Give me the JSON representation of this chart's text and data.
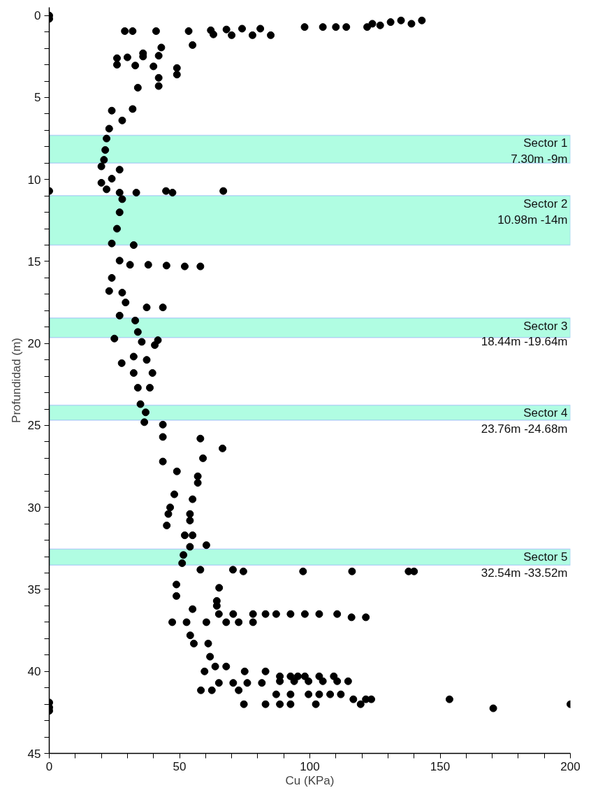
{
  "chart_data": {
    "type": "scatter",
    "xlabel": "Cu (KPa)",
    "ylabel": "Profundidad (m)",
    "marker": "circle",
    "xlim": [
      0,
      200
    ],
    "ylim": [
      45,
      -0.5
    ],
    "xticks": [
      0,
      {
        "value": 10,
        "label": null
      },
      {
        "value": 20,
        "label": null
      },
      {
        "value": 30,
        "label": null
      },
      {
        "value": 40,
        "label": null
      },
      50,
      {
        "value": 60,
        "label": null
      },
      {
        "value": 70,
        "label": null
      },
      {
        "value": 80,
        "label": null
      },
      {
        "value": 90,
        "label": null
      },
      100,
      {
        "value": 110,
        "label": null
      },
      {
        "value": 120,
        "label": null
      },
      {
        "value": 130,
        "label": null
      },
      {
        "value": 140,
        "label": null
      },
      150,
      {
        "value": 160,
        "label": null
      },
      {
        "value": 170,
        "label": null
      },
      {
        "value": 180,
        "label": null
      },
      {
        "value": 190,
        "label": null
      },
      200
    ],
    "yticks": [
      0,
      {
        "value": 1,
        "label": null
      },
      {
        "value": 2,
        "label": null
      },
      {
        "value": 3,
        "label": null
      },
      {
        "value": 4,
        "label": null
      },
      5,
      {
        "value": 6,
        "label": null
      },
      {
        "value": 7,
        "label": null
      },
      {
        "value": 8,
        "label": null
      },
      {
        "value": 9,
        "label": null
      },
      10,
      {
        "value": 11,
        "label": null
      },
      {
        "value": 12,
        "label": null
      },
      {
        "value": 13,
        "label": null
      },
      {
        "value": 14,
        "label": null
      },
      15,
      {
        "value": 16,
        "label": null
      },
      {
        "value": 17,
        "label": null
      },
      {
        "value": 18,
        "label": null
      },
      {
        "value": 19,
        "label": null
      },
      20,
      {
        "value": 21,
        "label": null
      },
      {
        "value": 22,
        "label": null
      },
      {
        "value": 23,
        "label": null
      },
      {
        "value": 24,
        "label": null
      },
      25,
      {
        "value": 26,
        "label": null
      },
      {
        "value": 27,
        "label": null
      },
      {
        "value": 28,
        "label": null
      },
      {
        "value": 29,
        "label": null
      },
      30,
      {
        "value": 31,
        "label": null
      },
      {
        "value": 32,
        "label": null
      },
      {
        "value": 33,
        "label": null
      },
      {
        "value": 34,
        "label": null
      },
      35,
      {
        "value": 36,
        "label": null
      },
      {
        "value": 37,
        "label": null
      },
      {
        "value": 38,
        "label": null
      },
      {
        "value": 39,
        "label": null
      },
      40,
      {
        "value": 41,
        "label": null
      },
      {
        "value": 42,
        "label": null
      },
      {
        "value": 43,
        "label": null
      },
      {
        "value": 44,
        "label": null
      },
      45
    ],
    "bands": [
      {
        "axis": "y",
        "from": 7.3,
        "to": 9,
        "label": "Sector 1\n7.30m -9m",
        "color": "#b0fde2"
      },
      {
        "axis": "y",
        "from": 10.98,
        "to": 14,
        "label": "Sector 2\n10.98m -14m",
        "color": "#b0fde2"
      },
      {
        "axis": "y",
        "from": 18.44,
        "to": 19.64,
        "label": "Sector 3\n18.44m -19.64m",
        "color": "#b0fde2"
      },
      {
        "axis": "y",
        "from": 23.76,
        "to": 24.68,
        "label": "Sector 4\n23.76m -24.68m",
        "color": "#b0fde2"
      },
      {
        "axis": "y",
        "from": 32.54,
        "to": 33.52,
        "label": "Sector 5\n32.54m -33.52m",
        "color": "#b0fde2"
      }
    ],
    "series": [
      {
        "color": "#000000",
        "x": [
          0,
          0,
          143,
          139,
          135,
          131,
          127,
          124,
          98,
          105,
          110,
          114,
          122,
          62,
          68,
          74,
          81,
          29,
          32,
          41,
          53.5,
          63,
          70,
          78,
          85,
          55,
          43,
          36,
          26,
          30,
          36,
          42,
          26,
          33,
          40,
          49,
          49,
          42,
          42,
          34,
          32,
          24,
          28,
          23,
          22,
          21.5,
          21,
          20,
          27,
          24,
          20,
          0,
          22,
          27,
          33.4,
          44.8,
          47.3,
          66.8,
          28,
          27,
          26,
          24,
          32.4,
          27,
          31,
          38,
          45,
          52,
          58,
          24,
          23,
          28,
          29.3,
          37.4,
          43.6,
          27,
          33,
          34,
          25,
          41.7,
          35.5,
          40.5,
          32.4,
          37.4,
          27.8,
          32.4,
          39.6,
          34,
          38.6,
          35,
          37,
          36.5,
          43.6,
          43.6,
          58,
          66.5,
          59,
          43.6,
          49,
          57,
          57,
          48,
          55,
          46.4,
          45.7,
          54,
          54,
          45.1,
          52,
          55,
          60.3,
          54,
          51.5,
          51,
          58,
          70.5,
          74.5,
          97.4,
          116.2,
          137.9,
          140,
          48.8,
          65.2,
          48.8,
          64.3,
          55,
          64.3,
          65.1,
          70.6,
          78.2,
          83,
          87.1,
          92.6,
          98.1,
          103.6,
          110.5,
          116,
          121.5,
          47.2,
          52.7,
          60.3,
          67.9,
          72.7,
          78.2,
          54.1,
          55.5,
          61,
          61.7,
          63.7,
          67.9,
          59.6,
          75,
          83,
          88.5,
          92.6,
          95.4,
          98.1,
          103.6,
          109.2,
          88.5,
          94,
          99.5,
          105,
          110.5,
          114.7,
          65.1,
          70.6,
          76,
          81.6,
          58.2,
          62.4,
          72.7,
          87.1,
          92.6,
          99.5,
          103.6,
          107.8,
          111.9,
          116.7,
          121.5,
          123.6,
          153.6,
          74.7,
          83,
          88.5,
          92.6,
          102.3,
          119.5,
          200,
          170.4,
          0,
          0,
          0
        ],
        "values": [
          0,
          0.2,
          0.3,
          0.5,
          0.3,
          0.4,
          0.6,
          0.5,
          0.7,
          0.7,
          0.7,
          0.7,
          0.7,
          0.9,
          0.85,
          0.8,
          0.8,
          0.95,
          0.95,
          0.95,
          0.95,
          1.15,
          1.2,
          1.2,
          1.2,
          1.8,
          1.95,
          2.3,
          2.6,
          2.55,
          2.5,
          2.45,
          3,
          3.05,
          3.1,
          3.2,
          3.6,
          3.8,
          4.3,
          4.4,
          5.7,
          5.8,
          6.4,
          6.9,
          7.5,
          8.2,
          8.8,
          9.2,
          9.4,
          9.95,
          10.2,
          10.7,
          10.6,
          10.8,
          10.8,
          10.7,
          10.8,
          10.7,
          11.2,
          12,
          13,
          13.9,
          14,
          14.95,
          15.2,
          15.2,
          15.25,
          15.3,
          15.3,
          16,
          16.8,
          16.9,
          17.5,
          17.8,
          17.8,
          18.3,
          18.6,
          19.3,
          19.7,
          19.8,
          19.9,
          20.1,
          20.8,
          21,
          21.2,
          21.8,
          21.8,
          22.7,
          22.7,
          23.7,
          24.2,
          24.8,
          24.95,
          25.7,
          25.8,
          26.4,
          27,
          27.2,
          27.8,
          28.1,
          28.5,
          29.2,
          29.5,
          30,
          30.4,
          30.4,
          30.8,
          31.1,
          31.7,
          31.7,
          32.3,
          32.4,
          32.9,
          33.4,
          33.8,
          33.8,
          33.9,
          33.9,
          33.9,
          33.9,
          33.9,
          34.7,
          34.9,
          35.4,
          35.7,
          36.2,
          36,
          36.5,
          36.5,
          36.5,
          36.5,
          36.5,
          36.5,
          36.5,
          36.5,
          36.5,
          36.7,
          36.7,
          37,
          37,
          37,
          37,
          37,
          37,
          37.8,
          38.3,
          38.3,
          39.1,
          39.7,
          39.7,
          40,
          40,
          40,
          40.3,
          40.3,
          40.3,
          40.3,
          40.3,
          40.3,
          40.6,
          40.6,
          40.6,
          40.6,
          40.6,
          40.6,
          40.7,
          40.7,
          40.7,
          40.7,
          41.15,
          41.15,
          41.15,
          41.4,
          41.4,
          41.4,
          41.4,
          41.4,
          41.4,
          41.7,
          41.7,
          41.7,
          41.7,
          42,
          42,
          42,
          42,
          42,
          42,
          42,
          42.25,
          41.9,
          42.2,
          42.4
        ]
      }
    ]
  }
}
